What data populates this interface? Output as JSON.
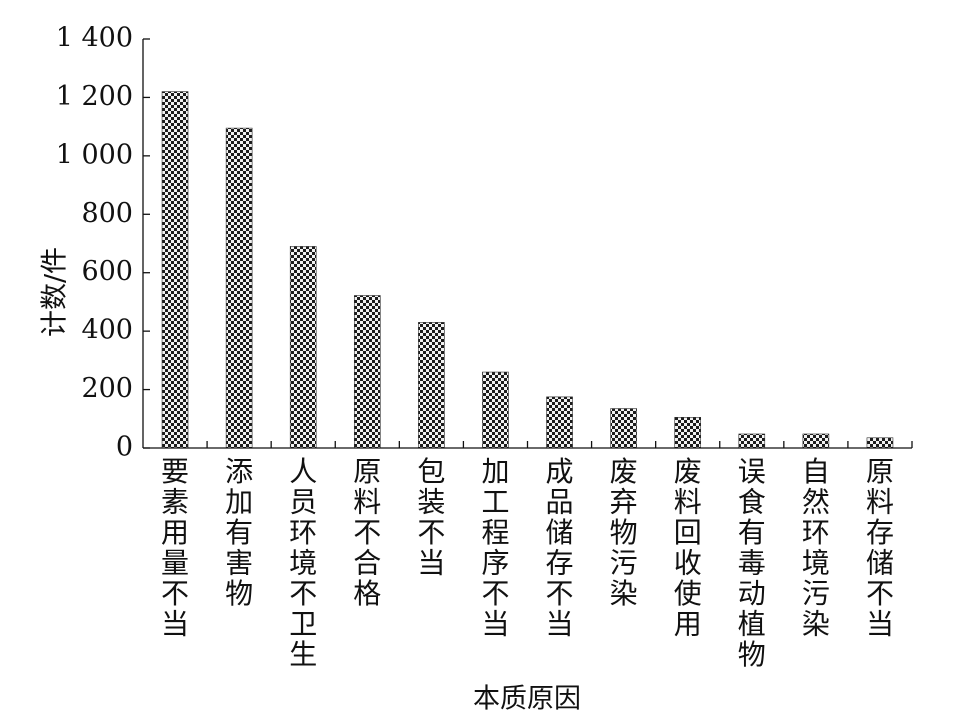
{
  "chart_data": {
    "type": "bar",
    "title": "",
    "xlabel": "本质原因",
    "ylabel": "计数/件",
    "ylim": [
      0,
      1400
    ],
    "yticks": [
      0,
      200,
      400,
      600,
      800,
      1000,
      1200,
      1400
    ],
    "ytick_labels": [
      "0",
      "200",
      "400",
      "600",
      "800",
      "1 000",
      "1 200",
      "1 400"
    ],
    "categories": [
      "要素用量不当",
      "添加有害物",
      "人员环境不卫生",
      "原料不合格",
      "包装不当",
      "加工程序不当",
      "成品储存不当",
      "废弃物污染",
      "废料回收使用",
      "误食有毒动植物",
      "自然环境污染",
      "原料存储不当"
    ],
    "values": [
      1220,
      1095,
      690,
      522,
      430,
      260,
      175,
      135,
      105,
      48,
      48,
      35
    ],
    "grid": false,
    "legend": "none",
    "bar_color": "#2f2f2f",
    "axis_color": "#111111"
  }
}
